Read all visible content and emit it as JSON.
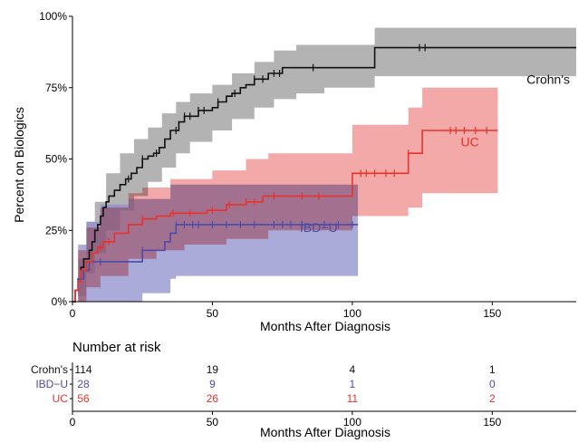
{
  "chart_data": {
    "type": "line",
    "subtype": "kaplan-meier-cumulative-incidence",
    "title": "",
    "xlabel": "Months After Diagnosis",
    "ylabel": "Percent on Biologics",
    "xlim": [
      0,
      180
    ],
    "ylim": [
      0,
      100
    ],
    "x_ticks": [
      0,
      50,
      100,
      150
    ],
    "x_tick_labels": [
      "0",
      "50",
      "100",
      "150"
    ],
    "y_ticks": [
      0,
      25,
      50,
      75,
      100
    ],
    "y_tick_labels": [
      "0%",
      "25%",
      "50%",
      "75%",
      "100%"
    ],
    "grid": false,
    "legend": "direct labels inside plot",
    "colors": {
      "crohns": "#111111",
      "ibdu": "#4b4ba8",
      "uc": "#e8322b"
    },
    "band_colors": {
      "crohns": "#9a9a9a",
      "ibdu": "#8f8fcc",
      "uc": "#f08c8c",
      "overlap": "#b04a9a"
    },
    "series": [
      {
        "name": "Crohn's",
        "label": "Crohn's",
        "label_at": [
          170,
          78
        ],
        "color": "#111111",
        "steps": [
          [
            0,
            0
          ],
          [
            1,
            4
          ],
          [
            2,
            8
          ],
          [
            3,
            12
          ],
          [
            4,
            15
          ],
          [
            6,
            18
          ],
          [
            7,
            21
          ],
          [
            8,
            25
          ],
          [
            9,
            27
          ],
          [
            10,
            30
          ],
          [
            11,
            33
          ],
          [
            12,
            35
          ],
          [
            13,
            37
          ],
          [
            15,
            39
          ],
          [
            17,
            41
          ],
          [
            19,
            43
          ],
          [
            21,
            45
          ],
          [
            23,
            47
          ],
          [
            25,
            50
          ],
          [
            27,
            51
          ],
          [
            29,
            52
          ],
          [
            31,
            54
          ],
          [
            33,
            57
          ],
          [
            35,
            60
          ],
          [
            38,
            63
          ],
          [
            40,
            65
          ],
          [
            45,
            67
          ],
          [
            50,
            68
          ],
          [
            52,
            70
          ],
          [
            55,
            72
          ],
          [
            57,
            73
          ],
          [
            60,
            75
          ],
          [
            62,
            76
          ],
          [
            65,
            78
          ],
          [
            70,
            80
          ],
          [
            75,
            82
          ],
          [
            88,
            82
          ],
          [
            108,
            89
          ],
          [
            180,
            89
          ]
        ],
        "ci_upper": [
          [
            0,
            0
          ],
          [
            2,
            15
          ],
          [
            5,
            28
          ],
          [
            8,
            35
          ],
          [
            12,
            45
          ],
          [
            17,
            52
          ],
          [
            22,
            57
          ],
          [
            27,
            61
          ],
          [
            32,
            66
          ],
          [
            37,
            70
          ],
          [
            42,
            73
          ],
          [
            50,
            76
          ],
          [
            57,
            80
          ],
          [
            65,
            84
          ],
          [
            72,
            88
          ],
          [
            80,
            90
          ],
          [
            90,
            90
          ],
          [
            108,
            96
          ],
          [
            180,
            96
          ]
        ],
        "ci_lower": [
          [
            0,
            0
          ],
          [
            2,
            2
          ],
          [
            5,
            10
          ],
          [
            8,
            17
          ],
          [
            12,
            25
          ],
          [
            17,
            32
          ],
          [
            22,
            37
          ],
          [
            27,
            42
          ],
          [
            32,
            47
          ],
          [
            37,
            52
          ],
          [
            42,
            56
          ],
          [
            50,
            60
          ],
          [
            57,
            64
          ],
          [
            65,
            68
          ],
          [
            72,
            71
          ],
          [
            80,
            73
          ],
          [
            90,
            75
          ],
          [
            108,
            79
          ],
          [
            180,
            79
          ]
        ],
        "censor_x": [
          20,
          25,
          30,
          37,
          40,
          42,
          45,
          47,
          52,
          58,
          65,
          68,
          72,
          74,
          86,
          124,
          126
        ]
      },
      {
        "name": "IBD−U",
        "label": "IBD−U",
        "label_at": [
          88,
          26
        ],
        "color": "#4b4ba8",
        "steps": [
          [
            0,
            0
          ],
          [
            1,
            4
          ],
          [
            2,
            8
          ],
          [
            4,
            11
          ],
          [
            6,
            14
          ],
          [
            25,
            18
          ],
          [
            33,
            21
          ],
          [
            35,
            24
          ],
          [
            37,
            27
          ],
          [
            102,
            27
          ]
        ],
        "ci_upper": [
          [
            0,
            0
          ],
          [
            2,
            20
          ],
          [
            5,
            28
          ],
          [
            10,
            34
          ],
          [
            20,
            36
          ],
          [
            35,
            41
          ],
          [
            102,
            41
          ]
        ],
        "ci_lower": [
          [
            0,
            0
          ],
          [
            15,
            0
          ],
          [
            25,
            3
          ],
          [
            35,
            8
          ],
          [
            37,
            9
          ],
          [
            102,
            9
          ]
        ],
        "censor_x": [
          10,
          25,
          37,
          40,
          43,
          45,
          50,
          55,
          60,
          65,
          72,
          75,
          78,
          82,
          90,
          95,
          100
        ]
      },
      {
        "name": "UC",
        "label": "UC",
        "label_at": [
          142,
          56
        ],
        "color": "#e8322b",
        "steps": [
          [
            0,
            0
          ],
          [
            1,
            4
          ],
          [
            2,
            7
          ],
          [
            3,
            11
          ],
          [
            5,
            14
          ],
          [
            7,
            17
          ],
          [
            9,
            19
          ],
          [
            11,
            21
          ],
          [
            15,
            24
          ],
          [
            20,
            27
          ],
          [
            25,
            29
          ],
          [
            30,
            30
          ],
          [
            35,
            31
          ],
          [
            48,
            32
          ],
          [
            55,
            34
          ],
          [
            62,
            35
          ],
          [
            68,
            37
          ],
          [
            98,
            37
          ],
          [
            100,
            45
          ],
          [
            112,
            45
          ],
          [
            120,
            52
          ],
          [
            125,
            60
          ],
          [
            152,
            60
          ]
        ],
        "ci_upper": [
          [
            0,
            0
          ],
          [
            2,
            18
          ],
          [
            5,
            26
          ],
          [
            10,
            33
          ],
          [
            20,
            38
          ],
          [
            25,
            40
          ],
          [
            35,
            43
          ],
          [
            50,
            46
          ],
          [
            62,
            50
          ],
          [
            70,
            52
          ],
          [
            98,
            52
          ],
          [
            100,
            62
          ],
          [
            120,
            68
          ],
          [
            125,
            75
          ],
          [
            152,
            75
          ]
        ],
        "ci_lower": [
          [
            0,
            0
          ],
          [
            5,
            5
          ],
          [
            10,
            9
          ],
          [
            20,
            15
          ],
          [
            30,
            18
          ],
          [
            40,
            20
          ],
          [
            55,
            22
          ],
          [
            70,
            25
          ],
          [
            98,
            25
          ],
          [
            100,
            30
          ],
          [
            120,
            33
          ],
          [
            125,
            38
          ],
          [
            152,
            38
          ]
        ],
        "censor_x": [
          10,
          13,
          25,
          36,
          42,
          50,
          56,
          62,
          65,
          72,
          82,
          88,
          103,
          105,
          108,
          112,
          115,
          120,
          135,
          137,
          140,
          144,
          148
        ]
      }
    ],
    "risk_table": {
      "title": "Number at risk",
      "xlabel": "Months After Diagnosis",
      "x_ticks": [
        0,
        50,
        100,
        150
      ],
      "x_tick_labels": [
        "0",
        "50",
        "100",
        "150"
      ],
      "rows": [
        {
          "label": "Crohn's",
          "color": "#111111",
          "values": [
            "114",
            "19",
            "4",
            "1"
          ]
        },
        {
          "label": "IBD−U",
          "color": "#4b4ba8",
          "values": [
            "28",
            "9",
            "1",
            "0"
          ]
        },
        {
          "label": "UC",
          "color": "#e8322b",
          "values": [
            "56",
            "26",
            "11",
            "2"
          ]
        }
      ]
    }
  }
}
